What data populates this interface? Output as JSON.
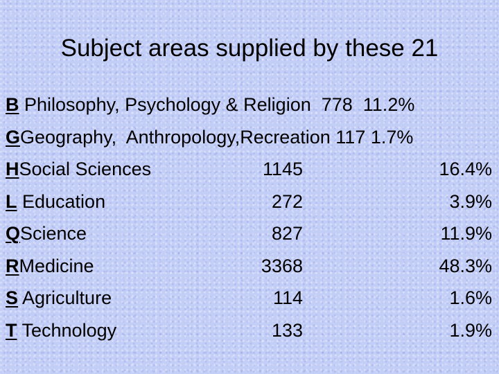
{
  "title": "Subject areas supplied by these 21",
  "first_rows": [
    {
      "code": "B",
      "text": " Philosophy, Psychology & Religion  778  11.2%"
    },
    {
      "code": "G",
      "text": "Geography,  Anthropology,Recreation 117 1.7%"
    }
  ],
  "rows": [
    {
      "code": "H",
      "label": "Social Sciences",
      "count": "1145",
      "percent": "16.4%"
    },
    {
      "code": "L",
      "label": " Education",
      "count": "272",
      "percent": "3.9%"
    },
    {
      "code": "Q",
      "label": "Science",
      "count": "827",
      "percent": "11.9%"
    },
    {
      "code": "R",
      "label": "Medicine",
      "count": "3368",
      "percent": "48.3%"
    },
    {
      "code": "S",
      "label": " Agriculture",
      "count": "114",
      "percent": "1.6%"
    },
    {
      "code": "T",
      "label": " Technology",
      "count": "133",
      "percent": "1.9%"
    }
  ]
}
